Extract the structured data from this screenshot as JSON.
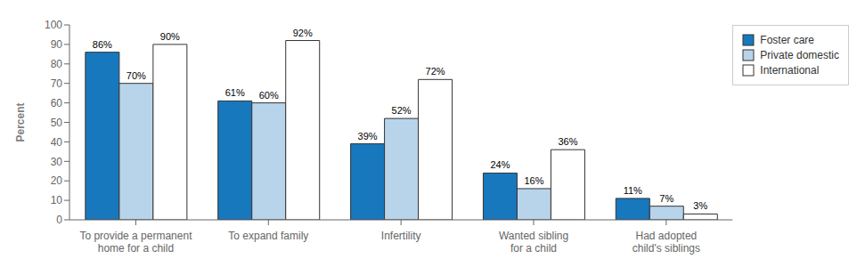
{
  "chart_data": {
    "type": "bar",
    "categories": [
      "To provide a permanent\nhome for a child",
      "To expand family",
      "Infertility",
      "Wanted sibling\nfor a child",
      "Had adopted\nchild's siblings"
    ],
    "series": [
      {
        "name": "Foster care",
        "color": "#1878be",
        "values": [
          86,
          61,
          39,
          24,
          11
        ],
        "value_labels": [
          "86%",
          "61%",
          "39%",
          "24%",
          "11%"
        ]
      },
      {
        "name": "Private domestic",
        "color": "#b8d4ea",
        "values": [
          70,
          60,
          52,
          16,
          7
        ],
        "value_labels": [
          "70%",
          "60%",
          "52%",
          "16%",
          "7%"
        ]
      },
      {
        "name": "International",
        "color": "#ffffff",
        "values": [
          90,
          92,
          72,
          36,
          3
        ],
        "value_labels": [
          "90%",
          "92%",
          "72%",
          "36%",
          "3%"
        ]
      }
    ],
    "y_label": "Percent",
    "ylim": [
      0,
      100
    ],
    "yticks": [
      0,
      10,
      20,
      30,
      40,
      50,
      60,
      70,
      80,
      90,
      100
    ],
    "grid": false,
    "legend": "upper right",
    "data_labels": true
  }
}
